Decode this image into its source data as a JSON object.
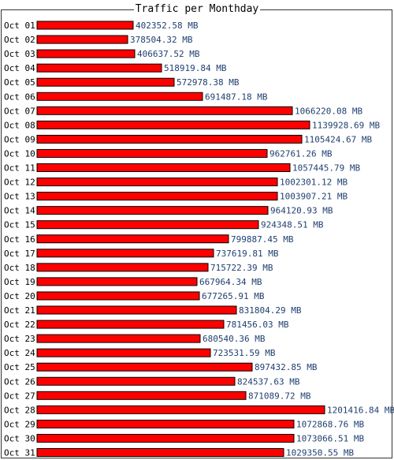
{
  "chart_data": {
    "type": "bar",
    "orientation": "horizontal",
    "title": "Traffic per Monthday",
    "unit": "MB",
    "categories": [
      "Oct 01",
      "Oct 02",
      "Oct 03",
      "Oct 04",
      "Oct 05",
      "Oct 06",
      "Oct 07",
      "Oct 08",
      "Oct 09",
      "Oct 10",
      "Oct 11",
      "Oct 12",
      "Oct 13",
      "Oct 14",
      "Oct 15",
      "Oct 16",
      "Oct 17",
      "Oct 18",
      "Oct 19",
      "Oct 20",
      "Oct 21",
      "Oct 22",
      "Oct 23",
      "Oct 24",
      "Oct 25",
      "Oct 26",
      "Oct 27",
      "Oct 28",
      "Oct 29",
      "Oct 30",
      "Oct 31"
    ],
    "values": [
      402352.58,
      378504.32,
      406637.52,
      518919.84,
      572978.38,
      691487.18,
      1066220.08,
      1139928.69,
      1105424.67,
      962761.26,
      1057445.79,
      1002301.12,
      1003907.21,
      964120.93,
      924348.51,
      799887.45,
      737619.81,
      715722.39,
      667964.34,
      677265.91,
      831804.29,
      781456.03,
      680540.36,
      723531.59,
      897432.85,
      824537.63,
      871089.72,
      1201416.84,
      1072868.76,
      1073066.51,
      1029350.55
    ],
    "value_labels": [
      "402352.58 MB",
      "378504.32 MB",
      "406637.52 MB",
      "518919.84 MB",
      "572978.38 MB",
      "691487.18 MB",
      "1066220.08 MB",
      "1139928.69 MB",
      "1105424.67 MB",
      "962761.26 MB",
      "1057445.79 MB",
      "1002301.12 MB",
      "1003907.21 MB",
      "964120.93 MB",
      "924348.51 MB",
      "799887.45 MB",
      "737619.81 MB",
      "715722.39 MB",
      "667964.34 MB",
      "677265.91 MB",
      "831804.29 MB",
      "781456.03 MB",
      "680540.36 MB",
      "723531.59 MB",
      "897432.85 MB",
      "824537.63 MB",
      "871089.72 MB",
      "1201416.84 MB",
      "1072868.76 MB",
      "1073066.51 MB",
      "1029350.55 MB"
    ],
    "colors": {
      "bar": "#ff0000",
      "bar_border": "#000000",
      "value_text": "#1f3f6f",
      "label_text": "#000000"
    }
  }
}
